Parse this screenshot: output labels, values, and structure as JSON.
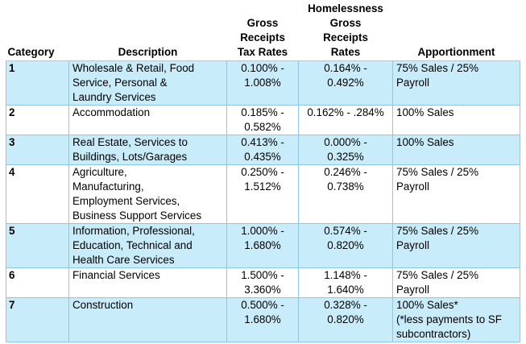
{
  "headers": {
    "category": "Category",
    "description": "Description",
    "gross_receipts": [
      "Gross",
      "Receipts",
      "Tax Rates"
    ],
    "homelessness": [
      "Homelessness",
      "Gross",
      "Receipts",
      "Rates"
    ],
    "apportionment": "Apportionment"
  },
  "rows": [
    {
      "category": "1",
      "description": [
        "Wholesale & Retail, Food",
        "Service, Personal &",
        "Laundry Services"
      ],
      "gross": [
        "0.100% -",
        "1.008%"
      ],
      "homeless": [
        "0.164% -",
        "0.492%"
      ],
      "apportionment": [
        "75% Sales / 25%",
        "Payroll"
      ]
    },
    {
      "category": "2",
      "description": [
        "Accommodation"
      ],
      "gross": [
        "0.185% -",
        "0.582%"
      ],
      "homeless": [
        "0.162% - .284%"
      ],
      "apportionment": [
        "100% Sales"
      ]
    },
    {
      "category": "3",
      "description": [
        "Real Estate, Services to",
        "Buildings, Lots/Garages"
      ],
      "gross": [
        "0.413% -",
        "0.435%"
      ],
      "homeless": [
        "0.000% -",
        "0.325%"
      ],
      "apportionment": [
        "100% Sales"
      ]
    },
    {
      "category": "4",
      "description": [
        "Agriculture,",
        "Manufacturing,",
        "Employment Services,",
        "Business Support Services"
      ],
      "gross": [
        "0.250% -",
        "1.512%"
      ],
      "homeless": [
        "0.246% -",
        "0.738%"
      ],
      "apportionment": [
        "75% Sales / 25%",
        "Payroll"
      ]
    },
    {
      "category": "5",
      "description": [
        "Information, Professional,",
        "Education, Technical and",
        "Health Care Services"
      ],
      "gross": [
        "1.000% -",
        "1.680%"
      ],
      "homeless": [
        "0.574% -",
        "0.820%"
      ],
      "apportionment": [
        "75% Sales / 25%",
        "Payroll"
      ]
    },
    {
      "category": "6",
      "description": [
        "Financial Services"
      ],
      "gross": [
        "1.500% -",
        "3.360%"
      ],
      "homeless": [
        "1.148% -",
        "1.640%"
      ],
      "apportionment": [
        "75% Sales / 25%",
        "Payroll"
      ]
    },
    {
      "category": "7",
      "description": [
        "Construction"
      ],
      "gross": [
        "0.500% -",
        "1.680%"
      ],
      "homeless": [
        "0.328% -",
        "0.820%"
      ],
      "apportionment": [
        "100% Sales*",
        "(*less payments to SF",
        "subcontractors)"
      ]
    }
  ]
}
